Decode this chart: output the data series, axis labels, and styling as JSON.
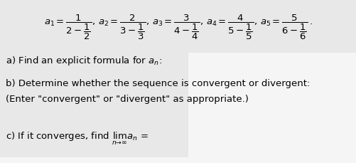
{
  "bg_color": "#f0f0f0",
  "top_section_color": "#e8e8e8",
  "mid_box_color": "#e8e8e8",
  "figsize": [
    5.02,
    2.3
  ],
  "dpi": 100
}
